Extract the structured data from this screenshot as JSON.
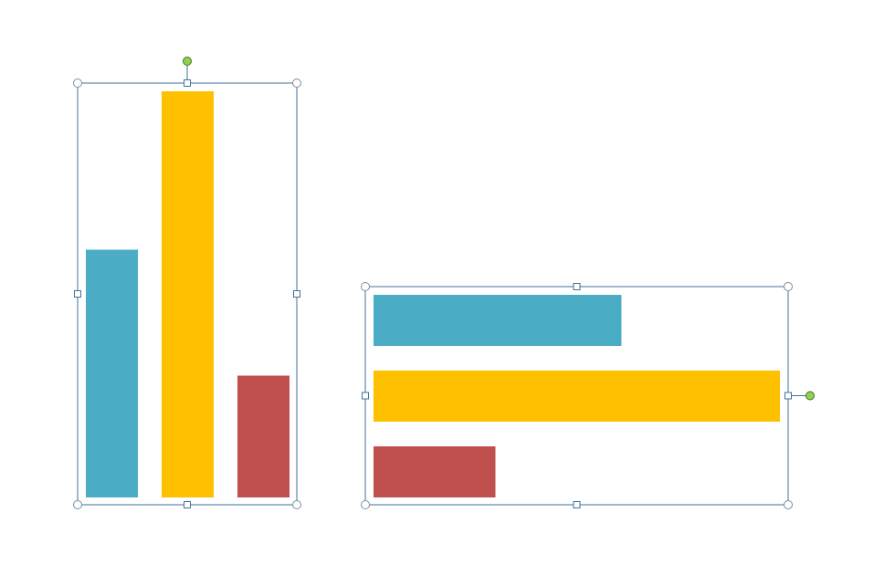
{
  "colors": {
    "bar_blue": "#4bacc6",
    "bar_yellow": "#ffc000",
    "bar_red": "#c0504d",
    "selection_frame": "#41719c",
    "rotate_handle": "#92d050"
  },
  "shapes": [
    {
      "name": "vertical-bar-group",
      "orientation": "vertical",
      "selected": true,
      "bars": [
        {
          "color_key": "bar_blue",
          "value": 0.61
        },
        {
          "color_key": "bar_yellow",
          "value": 1.0
        },
        {
          "color_key": "bar_red",
          "value": 0.3
        }
      ]
    },
    {
      "name": "horizontal-bar-group",
      "orientation": "horizontal",
      "selected": true,
      "bars": [
        {
          "color_key": "bar_blue",
          "value": 0.61
        },
        {
          "color_key": "bar_yellow",
          "value": 1.0
        },
        {
          "color_key": "bar_red",
          "value": 0.3
        }
      ]
    }
  ]
}
